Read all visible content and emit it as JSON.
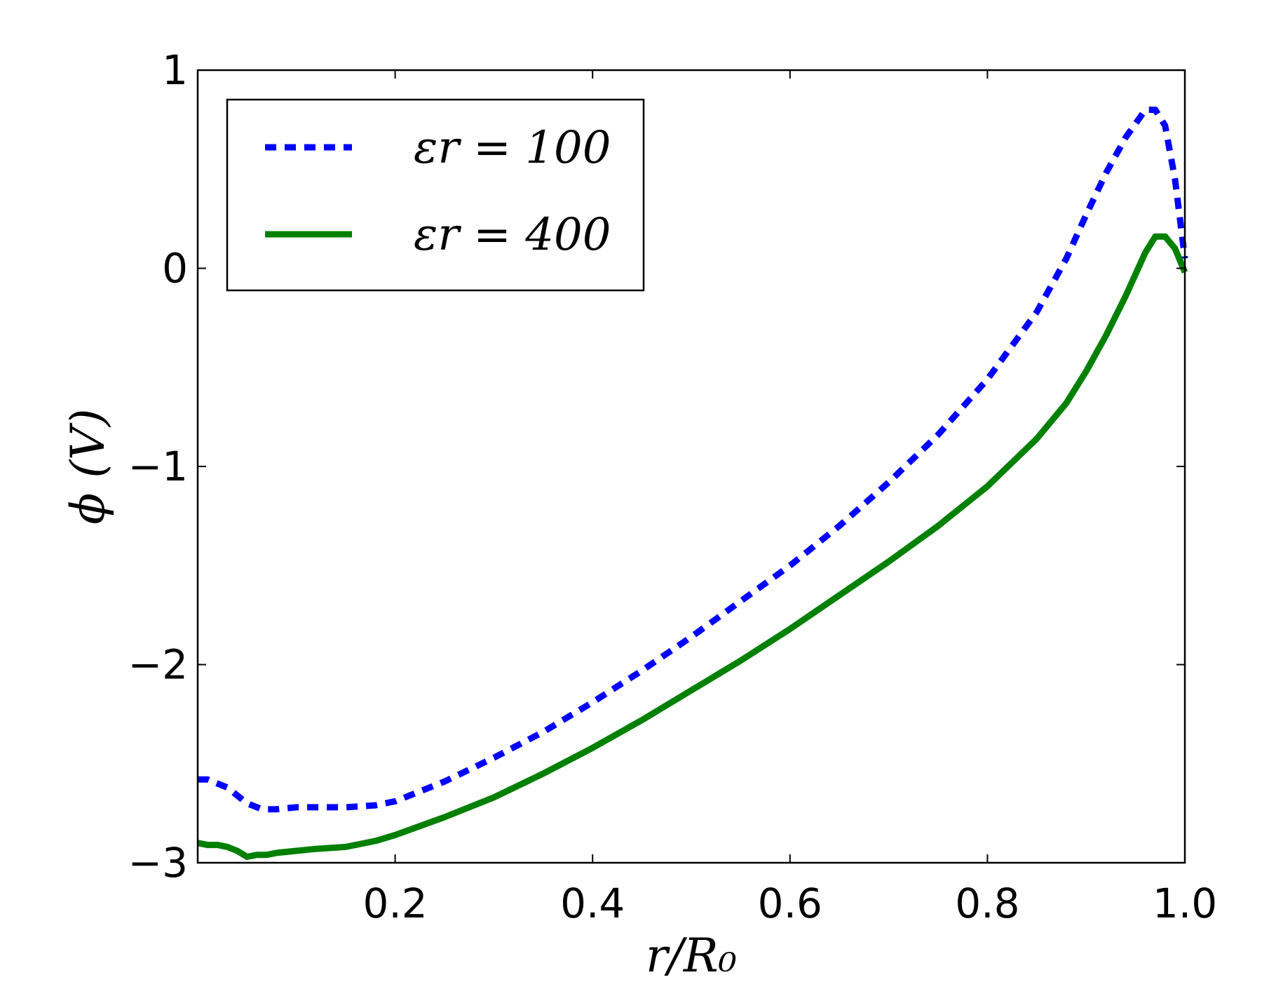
{
  "chart_data": {
    "type": "line",
    "title": "",
    "xlabel": "r/R₀",
    "ylabel": "ϕ (V)",
    "xlim": [
      0.0,
      1.0
    ],
    "ylim": [
      -3,
      1
    ],
    "x_ticks": [
      {
        "value": 0.2,
        "label": "0.2"
      },
      {
        "value": 0.4,
        "label": "0.4"
      },
      {
        "value": 0.6,
        "label": "0.6"
      },
      {
        "value": 0.8,
        "label": "0.8"
      },
      {
        "value": 1.0,
        "label": "1.0"
      }
    ],
    "y_ticks": [
      {
        "value": -3,
        "label": "−3"
      },
      {
        "value": -2,
        "label": "−2"
      },
      {
        "value": -1,
        "label": "−1"
      },
      {
        "value": 0,
        "label": "0"
      },
      {
        "value": 1,
        "label": "1"
      }
    ],
    "grid": false,
    "legend_position": "top-left",
    "series": [
      {
        "name": "εr = 100",
        "color": "#0000ff",
        "style": "dotted",
        "x": [
          0.0,
          0.01,
          0.03,
          0.05,
          0.065,
          0.08,
          0.1,
          0.12,
          0.15,
          0.18,
          0.2,
          0.25,
          0.3,
          0.35,
          0.4,
          0.45,
          0.5,
          0.55,
          0.6,
          0.65,
          0.7,
          0.75,
          0.8,
          0.85,
          0.88,
          0.9,
          0.92,
          0.94,
          0.96,
          0.97,
          0.98,
          0.99,
          1.0
        ],
        "values": [
          -2.58,
          -2.58,
          -2.62,
          -2.7,
          -2.73,
          -2.73,
          -2.72,
          -2.72,
          -2.72,
          -2.71,
          -2.69,
          -2.59,
          -2.47,
          -2.34,
          -2.19,
          -2.03,
          -1.86,
          -1.68,
          -1.5,
          -1.3,
          -1.08,
          -0.84,
          -0.56,
          -0.22,
          0.05,
          0.27,
          0.48,
          0.66,
          0.8,
          0.8,
          0.72,
          0.45,
          0.05
        ]
      },
      {
        "name": "εr = 400",
        "color": "#008000",
        "style": "solid",
        "x": [
          0.0,
          0.01,
          0.02,
          0.03,
          0.04,
          0.05,
          0.06,
          0.07,
          0.08,
          0.1,
          0.12,
          0.15,
          0.18,
          0.2,
          0.25,
          0.3,
          0.35,
          0.4,
          0.45,
          0.5,
          0.55,
          0.6,
          0.65,
          0.7,
          0.75,
          0.8,
          0.85,
          0.88,
          0.9,
          0.92,
          0.94,
          0.96,
          0.97,
          0.98,
          0.99,
          1.0
        ],
        "values": [
          -2.9,
          -2.91,
          -2.91,
          -2.92,
          -2.94,
          -2.97,
          -2.96,
          -2.96,
          -2.95,
          -2.94,
          -2.93,
          -2.92,
          -2.89,
          -2.86,
          -2.77,
          -2.67,
          -2.55,
          -2.42,
          -2.28,
          -2.13,
          -1.98,
          -1.82,
          -1.65,
          -1.48,
          -1.3,
          -1.1,
          -0.86,
          -0.68,
          -0.52,
          -0.34,
          -0.14,
          0.08,
          0.16,
          0.16,
          0.1,
          -0.02
        ]
      }
    ]
  }
}
